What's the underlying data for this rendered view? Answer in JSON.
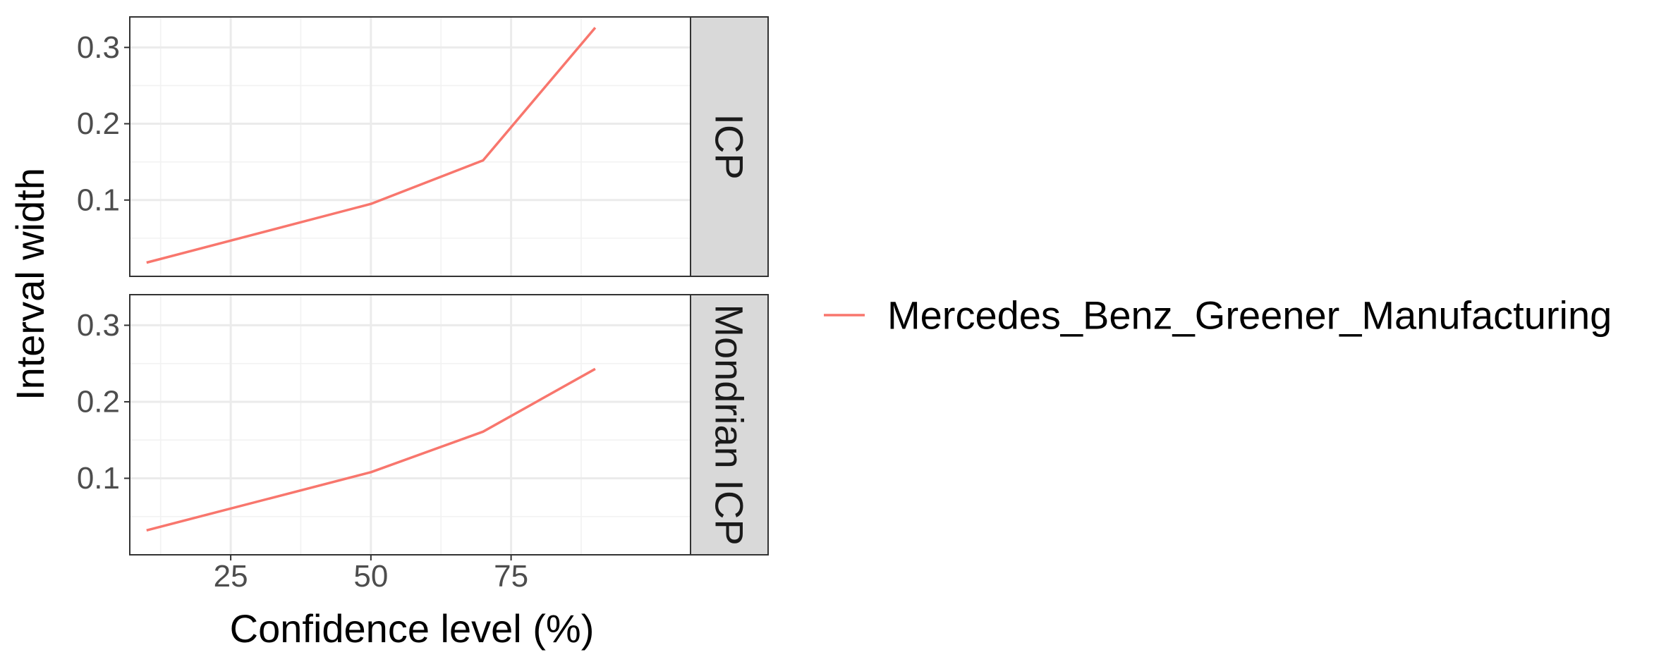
{
  "chart_data": {
    "type": "line",
    "xlabel": "Confidence level (%)",
    "ylabel": "Interval width",
    "xlim": [
      7,
      107
    ],
    "ylim": [
      0.0,
      0.34
    ],
    "x_ticks": [
      25,
      50,
      75
    ],
    "y_ticks": [
      0.1,
      0.2,
      0.3
    ],
    "x_minor_ticks": [
      12.5,
      37.5,
      62.5,
      87.5
    ],
    "y_minor_ticks": [
      0.05,
      0.15,
      0.25
    ],
    "grid": true,
    "legend_position": "right",
    "series_color": "#F8766D",
    "panels": [
      {
        "strip_label": "ICP",
        "series": [
          {
            "name": "Mercedes_Benz_Greener_Manufacturing",
            "x": [
              10,
              50,
              70,
              90
            ],
            "values": [
              0.018,
              0.095,
              0.152,
              0.326
            ]
          }
        ]
      },
      {
        "strip_label": "Mondrian ICP",
        "series": [
          {
            "name": "Mercedes_Benz_Greener_Manufacturing",
            "x": [
              10,
              50,
              70,
              90
            ],
            "values": [
              0.032,
              0.108,
              0.161,
              0.243
            ]
          }
        ]
      }
    ],
    "legend": [
      {
        "label": "Mercedes_Benz_Greener_Manufacturing",
        "color": "#F8766D"
      }
    ]
  }
}
